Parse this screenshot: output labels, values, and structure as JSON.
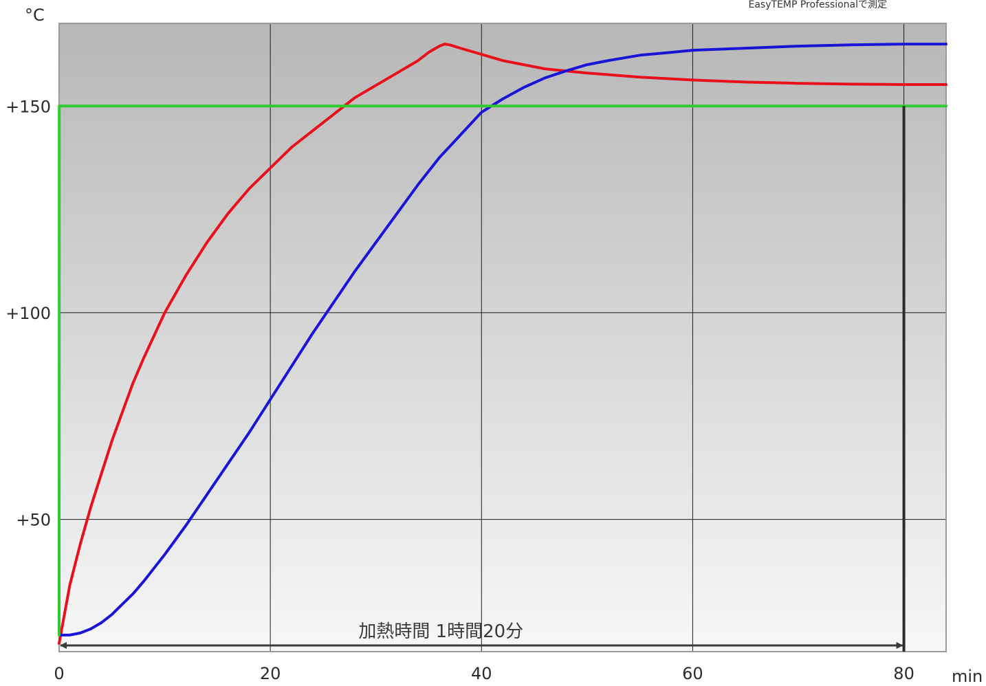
{
  "chart_data": {
    "type": "line",
    "credit": "EasyTEMP Professionalで測定",
    "xlabel": "min",
    "ylabel": "°C",
    "xlim": [
      0,
      84
    ],
    "ylim": [
      18,
      170
    ],
    "grid": true,
    "x_ticks": [
      0,
      20,
      40,
      60,
      80
    ],
    "x_tick_labels": [
      "0",
      "20",
      "40",
      "60",
      "80"
    ],
    "y_ticks": [
      50,
      100,
      150
    ],
    "y_tick_labels": [
      "+50",
      "+100",
      "+150"
    ],
    "colors": {
      "plot_top": "#b7b7b7",
      "plot_bottom": "#f7f7f7",
      "grid": "#1a1a1a",
      "border": "#9a9a9a"
    },
    "series": [
      {
        "color": "#e8101b",
        "x": [
          0,
          1,
          2,
          3,
          4,
          5,
          6,
          7,
          8,
          10,
          12,
          14,
          16,
          18,
          20,
          22,
          24,
          26,
          28,
          30,
          32,
          34,
          35,
          36,
          36.5,
          37,
          38,
          40,
          42,
          44,
          46,
          48,
          50,
          55,
          60,
          65,
          70,
          75,
          80,
          84
        ],
        "y": [
          20,
          34,
          44,
          53,
          61,
          69,
          76,
          83,
          89,
          100,
          109,
          117,
          124,
          130,
          135,
          140,
          144,
          148,
          152,
          155,
          158,
          161,
          163,
          164.5,
          165,
          164.8,
          164,
          162.5,
          161,
          160,
          159,
          158.5,
          158,
          157,
          156.3,
          155.8,
          155.5,
          155.3,
          155.2,
          155.2
        ]
      },
      {
        "color": "#1a14d6",
        "x": [
          0,
          1,
          2,
          3,
          4,
          5,
          6,
          7,
          8,
          10,
          12,
          14,
          16,
          18,
          20,
          22,
          24,
          26,
          28,
          30,
          32,
          34,
          36,
          38,
          40,
          42,
          44,
          46,
          48,
          50,
          52,
          55,
          58,
          60,
          65,
          70,
          75,
          80,
          84
        ],
        "y": [
          22,
          22,
          22.5,
          23.5,
          25,
          27,
          29.5,
          32,
          35,
          41.5,
          48.5,
          56,
          63.5,
          71,
          79,
          87,
          95,
          102.5,
          110,
          117,
          124,
          131,
          137.5,
          143,
          148.5,
          151.7,
          154.5,
          156.8,
          158.5,
          160,
          161,
          162.3,
          163,
          163.5,
          164,
          164.5,
          164.8,
          165,
          165
        ]
      },
      {
        "color": "#2ecb2e",
        "x": [
          0,
          0.01,
          84
        ],
        "y": [
          22,
          150,
          150
        ]
      }
    ],
    "annotations": [
      {
        "text": "加熱時間 1時間20分",
        "x_start": 0,
        "x_end": 80,
        "y": 19.5,
        "type": "double-arrow"
      }
    ],
    "marker_line": {
      "x": 80,
      "y_from": 18,
      "y_to": 150
    }
  }
}
